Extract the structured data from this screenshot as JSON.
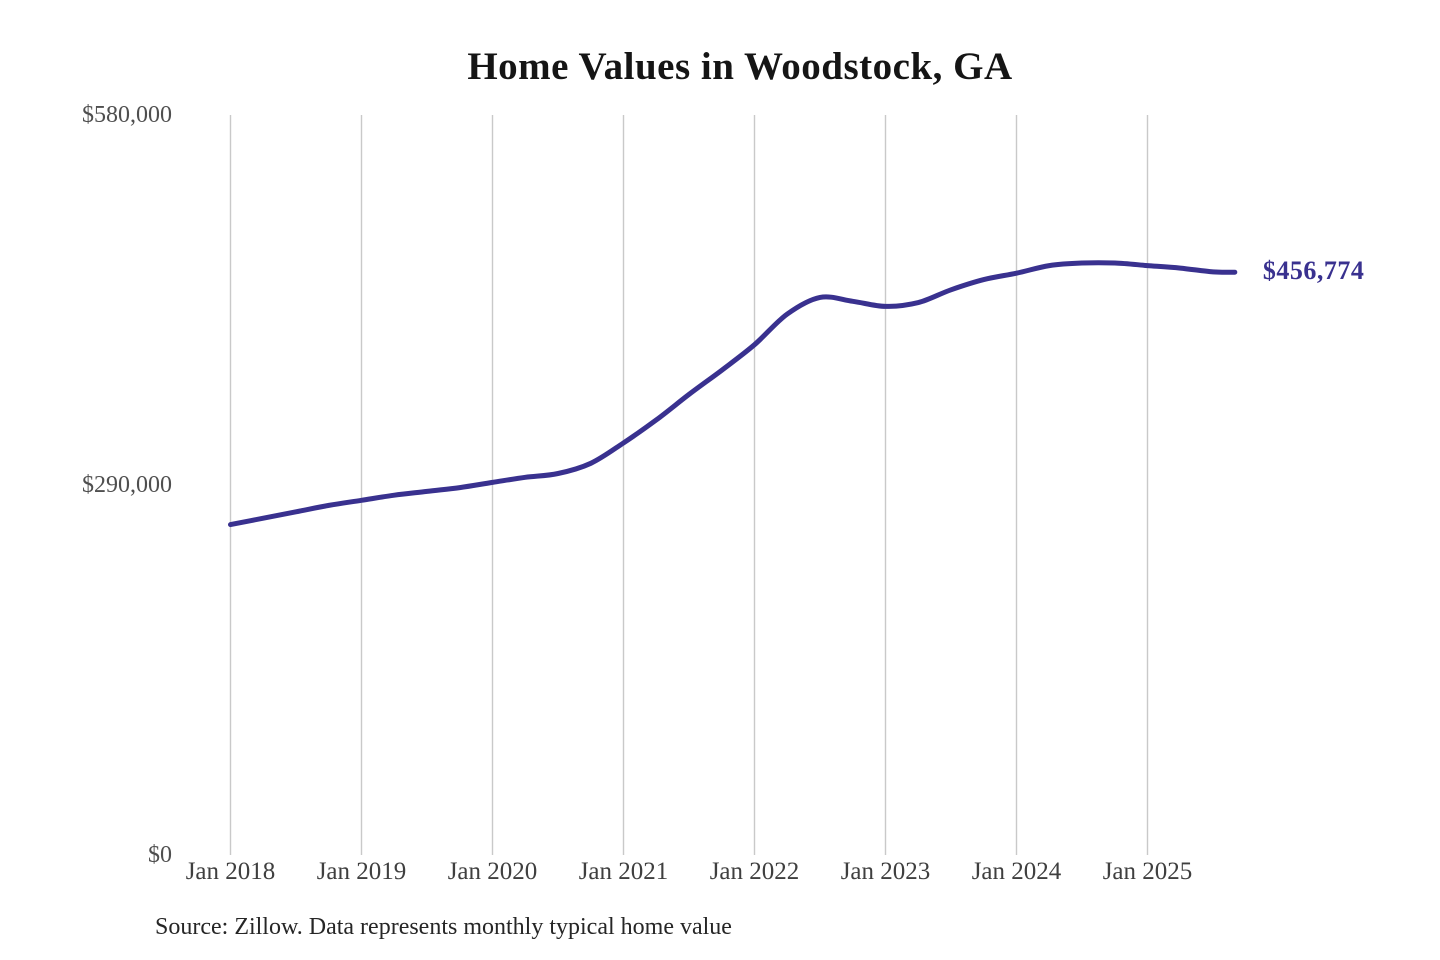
{
  "chart_data": {
    "type": "line",
    "title": "Home Values in Woodstock, GA",
    "xlabel": "",
    "ylabel": "",
    "ylim": [
      0,
      580000
    ],
    "grid": "vertical-only",
    "legend": "none",
    "line_color": "#39318f",
    "grid_color": "#c9c9c9",
    "y_ticks": [
      {
        "label": "$580,000",
        "value": 580000
      },
      {
        "label": "$290,000",
        "value": 290000
      },
      {
        "label": "$0",
        "value": 0
      }
    ],
    "x_ticks": [
      {
        "label": "Jan 2018",
        "month": "2018-01"
      },
      {
        "label": "Jan 2019",
        "month": "2019-01"
      },
      {
        "label": "Jan 2020",
        "month": "2020-01"
      },
      {
        "label": "Jan 2021",
        "month": "2021-01"
      },
      {
        "label": "Jan 2022",
        "month": "2022-01"
      },
      {
        "label": "Jan 2023",
        "month": "2023-01"
      },
      {
        "label": "Jan 2024",
        "month": "2024-01"
      },
      {
        "label": "Jan 2025",
        "month": "2025-01"
      }
    ],
    "series": [
      {
        "name": "Monthly typical home value",
        "x": [
          "2018-01",
          "2018-04",
          "2018-07",
          "2018-10",
          "2019-01",
          "2019-04",
          "2019-07",
          "2019-10",
          "2020-01",
          "2020-04",
          "2020-07",
          "2020-10",
          "2021-01",
          "2021-04",
          "2021-07",
          "2021-10",
          "2022-01",
          "2022-04",
          "2022-07",
          "2022-10",
          "2023-01",
          "2023-04",
          "2023-07",
          "2023-10",
          "2024-01",
          "2024-04",
          "2024-07",
          "2024-10",
          "2025-01",
          "2025-04",
          "2025-07",
          "2025-09"
        ],
        "values": [
          259000,
          264000,
          269000,
          274000,
          278000,
          282000,
          285000,
          288000,
          292000,
          296000,
          299000,
          307000,
          323000,
          341000,
          361000,
          380000,
          400000,
          424000,
          437000,
          434000,
          430000,
          433000,
          443000,
          451000,
          456000,
          462000,
          464000,
          464000,
          462000,
          460000,
          457000,
          456774
        ]
      }
    ],
    "latest_value": 456774,
    "end_label": "$456,774",
    "source": "Source: Zillow. Data represents monthly typical home value"
  }
}
